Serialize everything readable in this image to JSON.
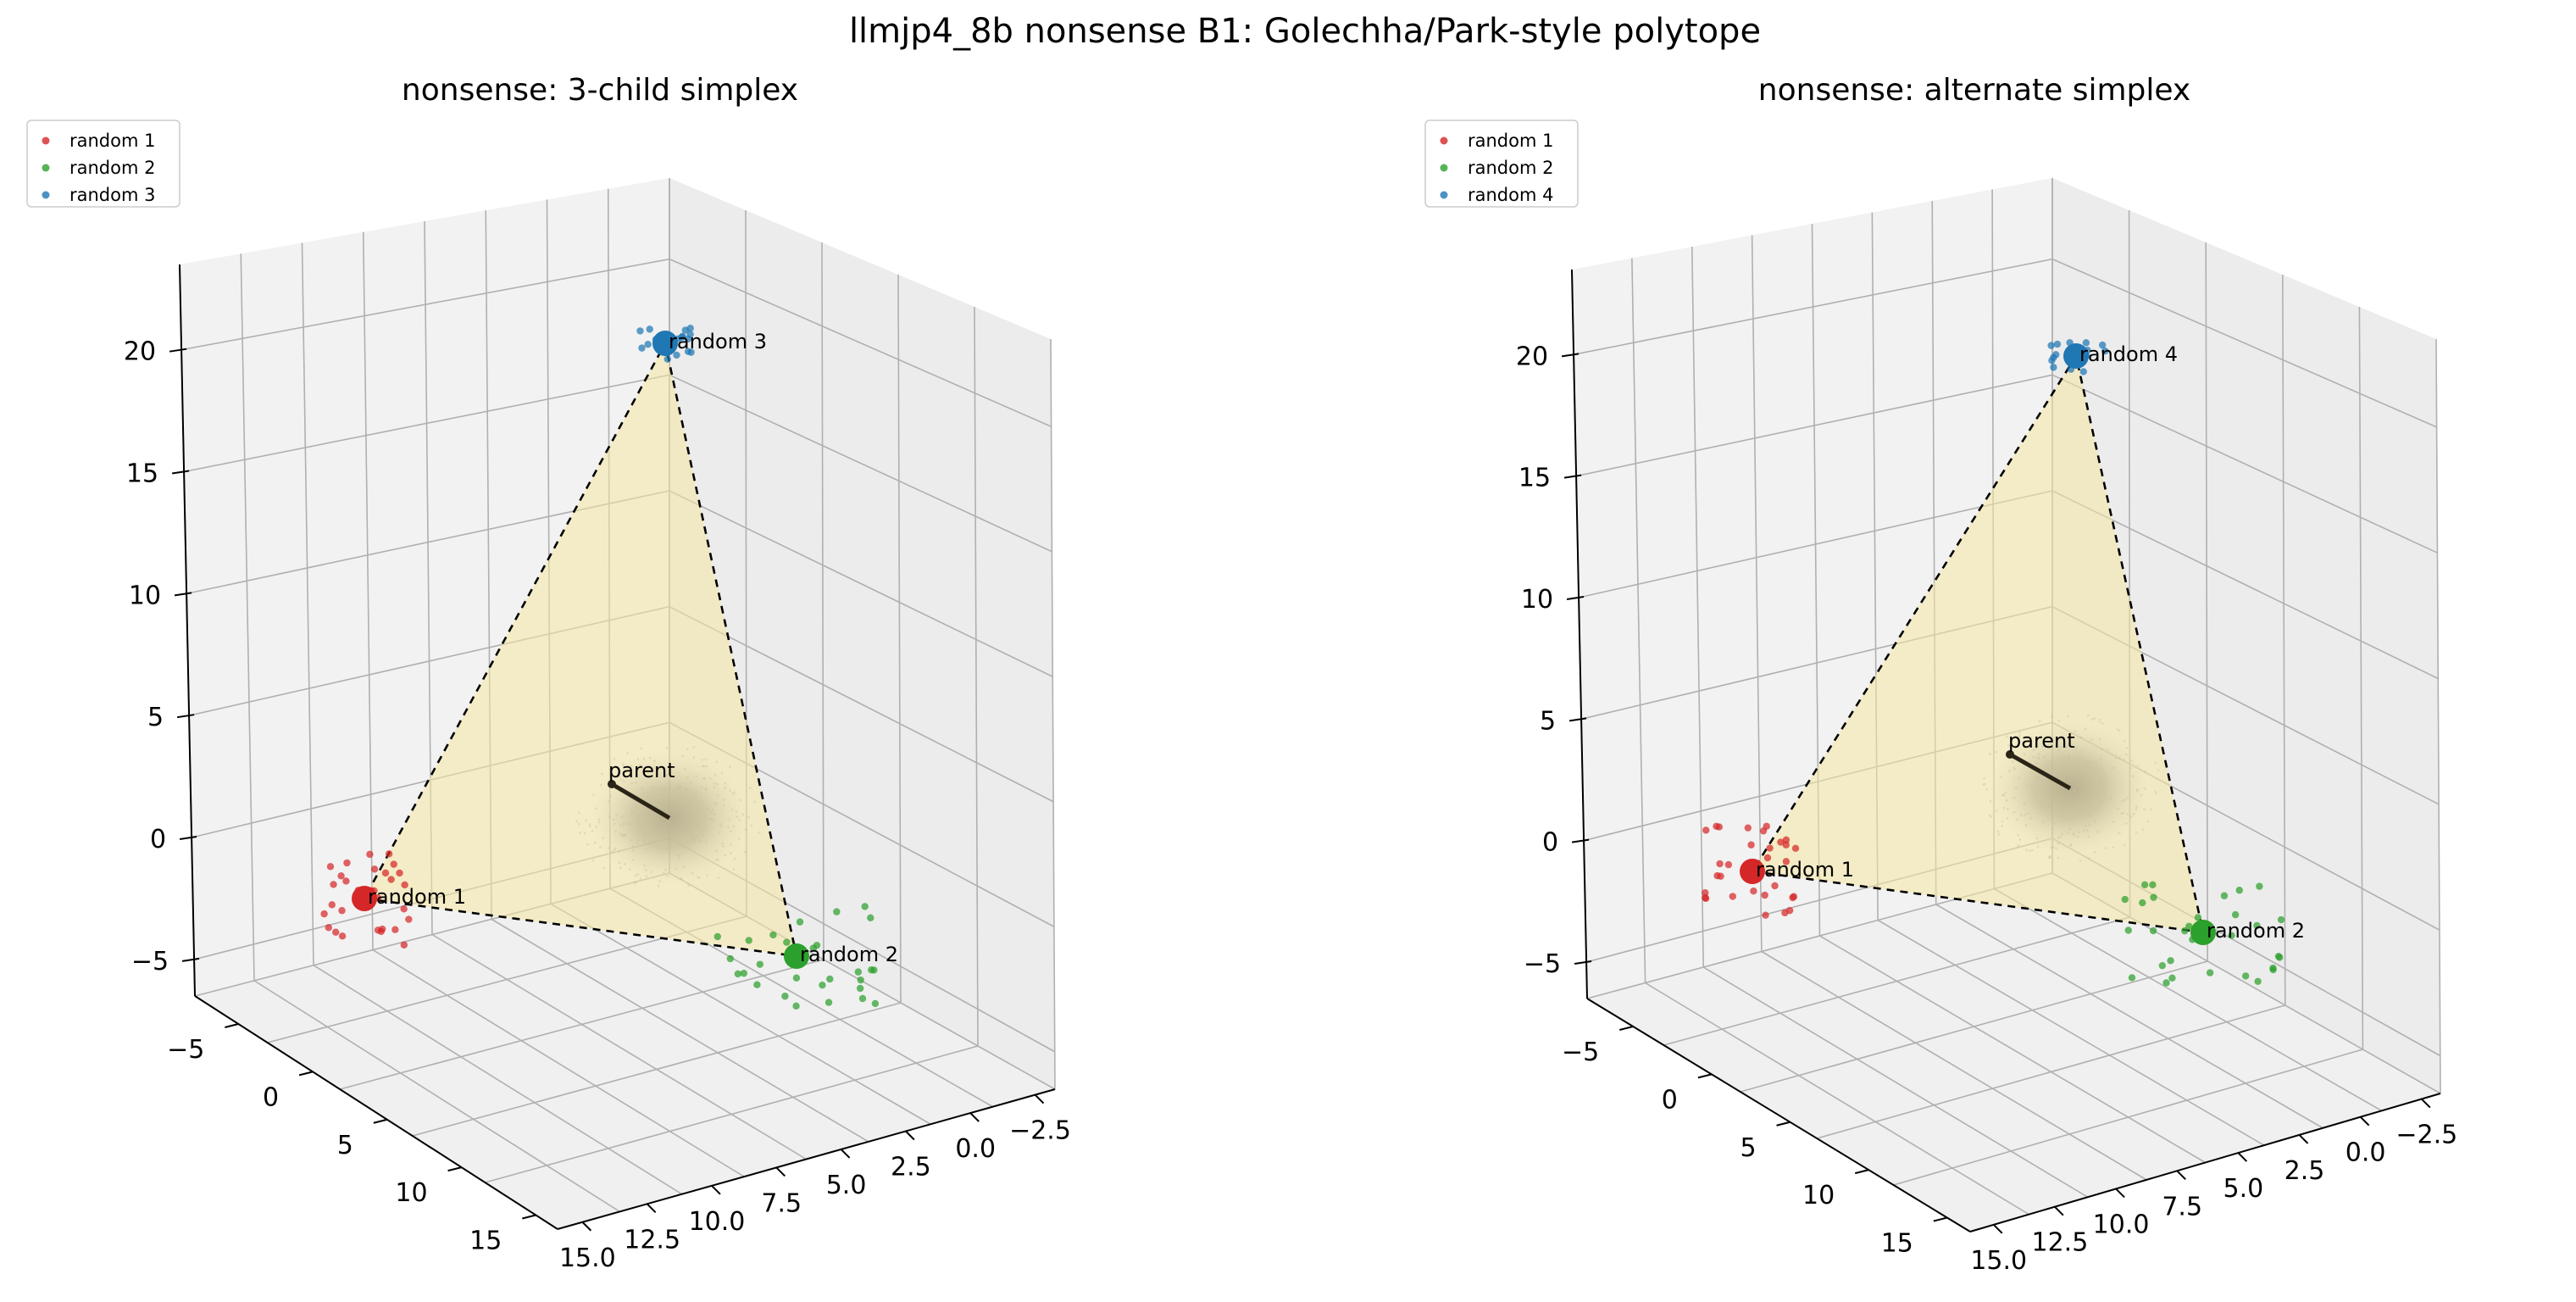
{
  "figure": {
    "suptitle": "llmjp4_8b nonsense B1: Golechha/Park-style polytope"
  },
  "chart_data": [
    {
      "type": "scatter3d",
      "title": "nonsense: 3-child simplex",
      "xlabel": "",
      "ylabel": "",
      "zlabel": "",
      "x_ticks": [
        "15.0",
        "12.5",
        "10.0",
        "7.5",
        "5.0",
        "2.5",
        "0.0",
        "−2.5"
      ],
      "y_ticks": [
        "−5",
        "0",
        "5",
        "10",
        "15"
      ],
      "z_ticks": [
        "−5",
        "0",
        "5",
        "10",
        "15",
        "20"
      ],
      "legend_position": "top-left",
      "legend": [
        "random 1",
        "random 2",
        "random 3"
      ],
      "colors": {
        "random 1": "#d62728",
        "random 2": "#2ca02c",
        "random 3": "#1f77b4",
        "parent_cloud": "#7f7f7f",
        "simplex_fill": "#f5e7a3"
      },
      "vertices": [
        {
          "label": "random 1",
          "color": "#d62728"
        },
        {
          "label": "random 2",
          "color": "#2ca02c"
        },
        {
          "label": "random 3",
          "color": "#1f77b4"
        }
      ],
      "parent_label": "parent",
      "grid": true
    },
    {
      "type": "scatter3d",
      "title": "nonsense: alternate simplex",
      "xlabel": "",
      "ylabel": "",
      "zlabel": "",
      "x_ticks": [
        "15.0",
        "12.5",
        "10.0",
        "7.5",
        "5.0",
        "2.5",
        "0.0",
        "−2.5"
      ],
      "y_ticks": [
        "−5",
        "0",
        "5",
        "10",
        "15"
      ],
      "z_ticks": [
        "−5",
        "0",
        "5",
        "10",
        "15",
        "20"
      ],
      "legend_position": "top-left",
      "legend": [
        "random 1",
        "random 2",
        "random 4"
      ],
      "colors": {
        "random 1": "#d62728",
        "random 2": "#2ca02c",
        "random 4": "#1f77b4",
        "parent_cloud": "#7f7f7f",
        "simplex_fill": "#f5e7a3"
      },
      "vertices": [
        {
          "label": "random 1",
          "color": "#d62728"
        },
        {
          "label": "random 2",
          "color": "#2ca02c"
        },
        {
          "label": "random 4",
          "color": "#1f77b4"
        }
      ],
      "parent_label": "parent",
      "grid": true
    }
  ]
}
